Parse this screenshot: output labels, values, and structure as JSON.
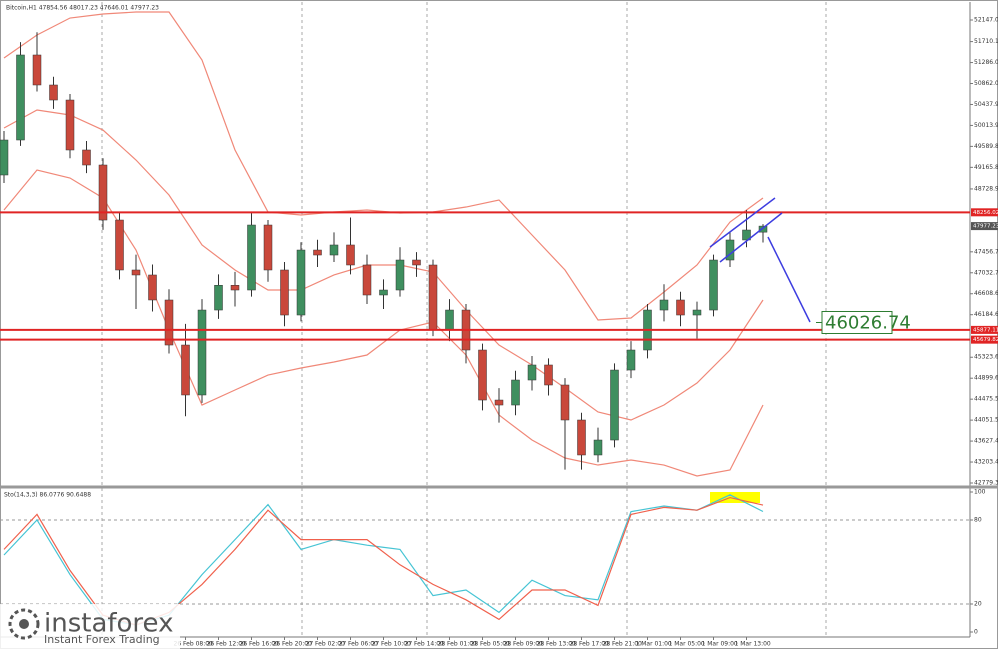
{
  "chart_data": [
    {
      "type": "candlestick",
      "title": "Bitcoin,H1  47854.56 48017.23 47646.01 47977.23",
      "categories": [
        null,
        null,
        null,
        null,
        null,
        null,
        null,
        null,
        null,
        null,
        null,
        "26 Feb 08:00",
        null,
        "26 Feb 12:00",
        null,
        "26 Feb 16:00",
        null,
        "26 Feb 20:00",
        null,
        "27 Feb 02:00",
        null,
        "27 Feb 06:00",
        null,
        "27 Feb 10:00",
        null,
        "27 Feb 14:00",
        null,
        "28 Feb 01:00",
        null,
        "28 Feb 05:00",
        null,
        "28 Feb 09:00",
        null,
        "28 Feb 13:00",
        null,
        "28 Feb 17:00",
        null,
        "28 Feb 21:00",
        null,
        "1 Mar 01:00",
        null,
        "1 Mar 05:00",
        null,
        "1 Mar 09:00",
        null,
        "1 Mar 13:00",
        null
      ],
      "open": [
        49011,
        49719,
        51439,
        50832,
        50528,
        49517,
        49213,
        48100,
        47089,
        46988,
        46482,
        45571,
        44560,
        46279,
        46780,
        46684,
        47999,
        47089,
        46178,
        47493,
        47392,
        47595,
        47190,
        46583,
        46684,
        47291,
        47190,
        45875,
        46279,
        45470,
        44458,
        44357,
        44863,
        45167,
        44762,
        44054,
        43346,
        43649,
        45065,
        45470,
        46279,
        46482,
        46178,
        46279,
        47291,
        47696,
        47854.56
      ],
      "high": [
        49900,
        51700,
        51900,
        51000,
        50650,
        49700,
        49350,
        48250,
        47400,
        47200,
        46700,
        46000,
        46500,
        47000,
        47050,
        48250,
        48100,
        47250,
        47650,
        47700,
        47850,
        48150,
        47400,
        46900,
        47550,
        47450,
        47300,
        46500,
        46400,
        45600,
        44700,
        45050,
        45350,
        45300,
        44900,
        44200,
        43900,
        45200,
        45650,
        46400,
        46800,
        46650,
        46450,
        47400,
        47850,
        48300,
        48017.23
      ],
      "low": [
        48850,
        49600,
        50700,
        50350,
        49350,
        49050,
        47900,
        46900,
        46300,
        46250,
        45400,
        44130,
        44400,
        46100,
        46350,
        46550,
        46850,
        45950,
        46050,
        47150,
        47250,
        47000,
        46400,
        46300,
        46550,
        46950,
        45750,
        45650,
        45200,
        44250,
        44000,
        44150,
        44650,
        44550,
        43050,
        43050,
        43200,
        43500,
        44900,
        45300,
        46050,
        45950,
        45700,
        46150,
        47150,
        47550,
        47646.01
      ],
      "close": [
        49719,
        51439,
        50832,
        50528,
        49517,
        49213,
        48100,
        47089,
        46988,
        46482,
        45571,
        44560,
        46279,
        46780,
        46684,
        47999,
        47089,
        46178,
        47493,
        47392,
        47595,
        47190,
        46583,
        46684,
        47291,
        47190,
        45875,
        46279,
        45470,
        44458,
        44357,
        44863,
        45167,
        44762,
        44054,
        43346,
        43649,
        45065,
        45470,
        46279,
        46482,
        46178,
        46279,
        47291,
        47696,
        47898,
        47977.23
      ],
      "up_color": "#3f8f5f",
      "down_color": "#c9483b",
      "bands": {
        "color": "#f08878",
        "x": [
          0,
          2,
          4,
          6,
          8,
          10,
          12,
          14,
          16,
          18,
          20,
          22,
          24,
          26,
          28,
          30,
          32,
          34,
          36,
          38,
          40,
          42,
          44,
          46
        ],
        "upper": [
          51378,
          51844,
          52187,
          52268,
          52309,
          52309,
          51338,
          49517,
          48262,
          48202,
          48262,
          48303,
          48242,
          48262,
          48363,
          48505,
          47797,
          47089,
          46077,
          46118,
          46644,
          47190,
          48060,
          48546
        ],
        "middle": [
          49962,
          50326,
          50225,
          49921,
          49314,
          48606,
          47595,
          47089,
          46684,
          46684,
          46988,
          47190,
          47190,
          47048,
          46279,
          45571,
          45167,
          44701,
          44216,
          44054,
          44357,
          44802,
          45470,
          46482
        ],
        "lower": [
          48303,
          49112,
          48950,
          48546,
          47493,
          45875,
          44357,
          44661,
          44964,
          45106,
          45227,
          45369,
          45875,
          46037,
          45369,
          44155,
          43649,
          43285,
          43143,
          43244,
          43143,
          42921,
          43042,
          44357
        ]
      },
      "levels": [
        48256.02,
        45877.11,
        45679.82
      ],
      "level_color": "#e02424",
      "last_price": 47977.23,
      "annotation_price": 46026.74,
      "ylim": [
        42779.36,
        52147
      ],
      "yticks": [
        {
          "value": 52147,
          "label": "52147.00"
        },
        {
          "value": 51710.1,
          "label": "51710.10"
        },
        51286.05,
        {
          "value": 50862,
          "label": "50862.00"
        },
        50437.95,
        {
          "value": 50013.9,
          "label": "50013.90"
        },
        49589.85,
        {
          "value": 49165.8,
          "label": "49165.80"
        },
        {
          "value": 48728.9,
          "label": "48728.90"
        },
        47456.75,
        {
          "value": 47032.7,
          "label": "47032.70"
        },
        46608.65,
        {
          "value": 46184.6,
          "label": "46184.60"
        },
        45323.65,
        {
          "value": 44899.6,
          "label": "44899.60"
        },
        44475.55,
        {
          "value": 44051.5,
          "label": "44051.50"
        },
        43627.45,
        {
          "value": 43203.4,
          "label": "43203.40"
        },
        42779.36
      ]
    },
    {
      "type": "line",
      "title": "Sto(14,3,3) 86.0776 90.6488",
      "x": [
        0,
        2,
        4,
        6,
        8,
        10,
        12,
        14,
        16,
        18,
        20,
        22,
        24,
        26,
        28,
        30,
        32,
        34,
        36,
        38,
        40,
        42,
        44,
        46
      ],
      "series": [
        {
          "color": "#46c4d4",
          "values": [
            55,
            80,
            41,
            9,
            5,
            12,
            41,
            66,
            91,
            59,
            66,
            62,
            59,
            26,
            30,
            14,
            37,
            26,
            23,
            86,
            90,
            87,
            98,
            86.0776
          ]
        },
        {
          "color": "#f0604c",
          "values": [
            59,
            84,
            44,
            12,
            5,
            14,
            34,
            59,
            87,
            66,
            66,
            66,
            48,
            34,
            23,
            9,
            30,
            30,
            19,
            84,
            89,
            87,
            96,
            90.6488
          ]
        }
      ],
      "ylim": [
        0,
        100
      ],
      "yticks": [
        0,
        20,
        80,
        100
      ]
    }
  ],
  "watermark": {
    "brand": "instaforex",
    "tagline": "Instant Forex Trading"
  }
}
